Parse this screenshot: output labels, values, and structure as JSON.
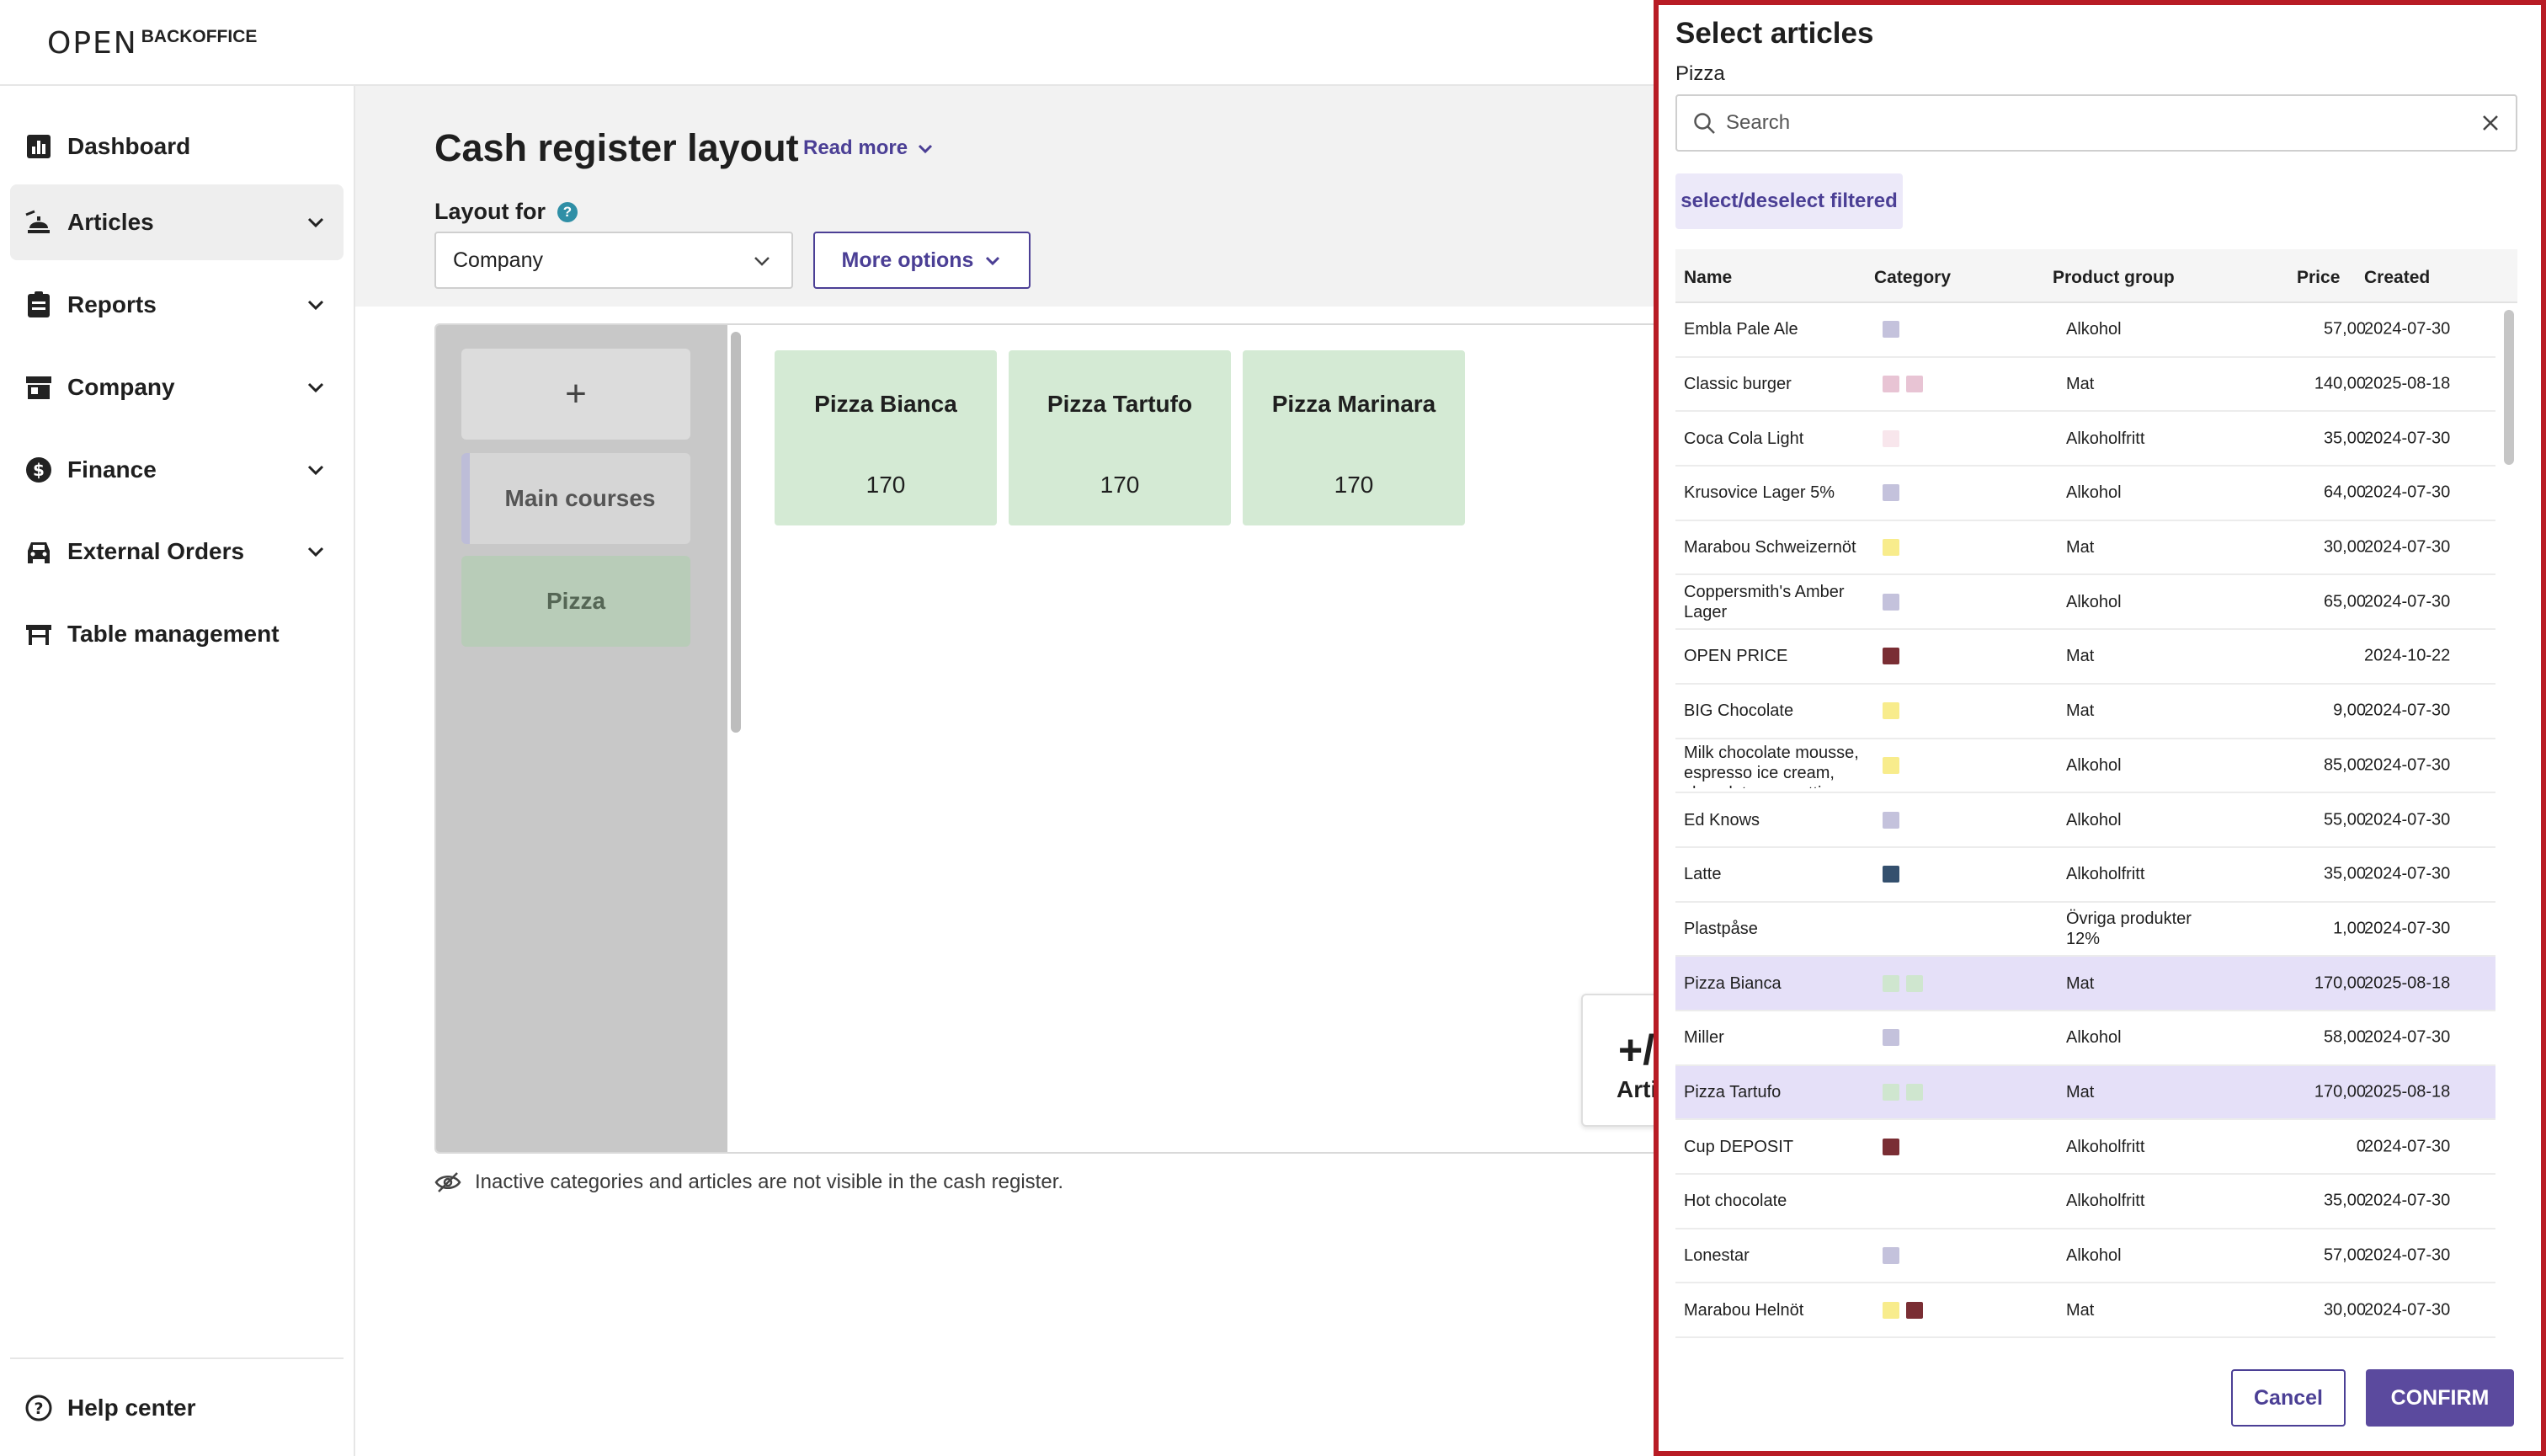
{
  "header": {
    "logo_mark": "OPEN",
    "logo_text": "BACKOFFICE"
  },
  "sidebar": {
    "items": [
      {
        "label": "Dashboard",
        "icon": "dashboard-icon"
      },
      {
        "label": "Articles",
        "icon": "articles-icon",
        "active": true
      },
      {
        "label": "Reports",
        "icon": "reports-icon"
      },
      {
        "label": "Company",
        "icon": "company-icon"
      },
      {
        "label": "Finance",
        "icon": "finance-icon"
      },
      {
        "label": "External Orders",
        "icon": "car-icon"
      },
      {
        "label": "Table management",
        "icon": "table-icon"
      }
    ],
    "help": "Help center"
  },
  "main": {
    "title": "Cash register layout",
    "read_more": "Read more",
    "layout_for_label": "Layout for",
    "layout_for_value": "Company",
    "more_options": "More options",
    "add_category": "+",
    "categories": [
      "Main courses",
      "Pizza"
    ],
    "articles": [
      {
        "name": "Pizza Bianca",
        "price": "170"
      },
      {
        "name": "Pizza Tartufo",
        "price": "170"
      },
      {
        "name": "Pizza Marinara",
        "price": "170"
      }
    ],
    "add_article_plus": "+/",
    "add_article_label": "Arti",
    "inactive_note": "Inactive categories and articles are not visible in the cash register."
  },
  "panel": {
    "title": "Select articles",
    "subtitle": "Pizza",
    "search_placeholder": "Search",
    "select_filtered": "select/deselect filtered",
    "columns": {
      "name": "Name",
      "category": "Category",
      "group": "Product group",
      "price": "Price",
      "created": "Created"
    },
    "rows": [
      {
        "name": "Embla Pale Ale",
        "colors": [
          "#c4c2dc"
        ],
        "group": "Alkohol",
        "price": "57,00",
        "created": "2024-07-30",
        "selected": false
      },
      {
        "name": "Classic burger",
        "colors": [
          "#e8c4d4",
          "#e8c4d4"
        ],
        "group": "Mat",
        "price": "140,00",
        "created": "2025-08-18",
        "selected": false
      },
      {
        "name": "Coca Cola Light",
        "colors": [
          "#f8e6ec"
        ],
        "group": "Alkoholfritt",
        "price": "35,00",
        "created": "2024-07-30",
        "selected": false
      },
      {
        "name": "Krusovice Lager 5%",
        "colors": [
          "#c4c2dc"
        ],
        "group": "Alkohol",
        "price": "64,00",
        "created": "2024-07-30",
        "selected": false
      },
      {
        "name": "Marabou Schweizernöt",
        "colors": [
          "#f8ec8c"
        ],
        "group": "Mat",
        "price": "30,00",
        "created": "2024-07-30",
        "selected": false
      },
      {
        "name": "Coppersmith's Amber Lager",
        "colors": [
          "#c4c2dc"
        ],
        "group": "Alkohol",
        "price": "65,00",
        "created": "2024-07-30",
        "selected": false
      },
      {
        "name": "OPEN PRICE",
        "colors": [
          "#7a2e34"
        ],
        "group": "Mat",
        "price": "",
        "created": "2024-10-22",
        "selected": false
      },
      {
        "name": "BIG Chocolate",
        "colors": [
          "#f8ec8c"
        ],
        "group": "Mat",
        "price": "9,00",
        "created": "2024-07-30",
        "selected": false
      },
      {
        "name": "Milk chocolate mousse, espresso ice cream, chocolate amaretti",
        "colors": [
          "#f8ec8c"
        ],
        "group": "Alkohol",
        "price": "85,00",
        "created": "2024-07-30",
        "selected": false
      },
      {
        "name": "Ed Knows",
        "colors": [
          "#c4c2dc"
        ],
        "group": "Alkohol",
        "price": "55,00",
        "created": "2024-07-30",
        "selected": false
      },
      {
        "name": "Latte",
        "colors": [
          "#34506e"
        ],
        "group": "Alkoholfritt",
        "price": "35,00",
        "created": "2024-07-30",
        "selected": false
      },
      {
        "name": "Plastpåse",
        "colors": [],
        "group": "Övriga produkter 12%",
        "price": "1,00",
        "created": "2024-07-30",
        "selected": false
      },
      {
        "name": "Pizza Bianca",
        "colors": [
          "#cfe6cf",
          "#cfe6cf"
        ],
        "group": "Mat",
        "price": "170,00",
        "created": "2025-08-18",
        "selected": true
      },
      {
        "name": "Miller",
        "colors": [
          "#c4c2dc"
        ],
        "group": "Alkohol",
        "price": "58,00",
        "created": "2024-07-30",
        "selected": false
      },
      {
        "name": "Pizza Tartufo",
        "colors": [
          "#cfe6cf",
          "#cfe6cf"
        ],
        "group": "Mat",
        "price": "170,00",
        "created": "2025-08-18",
        "selected": true
      },
      {
        "name": "Cup DEPOSIT",
        "colors": [
          "#7a2e34"
        ],
        "group": "Alkoholfritt",
        "price": "0",
        "created": "2024-07-30",
        "selected": false
      },
      {
        "name": "Hot chocolate",
        "colors": [],
        "group": "Alkoholfritt",
        "price": "35,00",
        "created": "2024-07-30",
        "selected": false
      },
      {
        "name": "Lonestar",
        "colors": [
          "#c4c2dc"
        ],
        "group": "Alkohol",
        "price": "57,00",
        "created": "2024-07-30",
        "selected": false
      },
      {
        "name": "Marabou Helnöt",
        "colors": [
          "#f8ec8c",
          "#7a2e34"
        ],
        "group": "Mat",
        "price": "30,00",
        "created": "2024-07-30",
        "selected": false
      }
    ],
    "cancel": "Cancel",
    "confirm": "CONFIRM"
  },
  "colors": {
    "accent": "#4b3f95",
    "panel_border": "#b81c25",
    "confirm_bg": "#5b4a9e",
    "tile_bg": "#d4ead4"
  }
}
